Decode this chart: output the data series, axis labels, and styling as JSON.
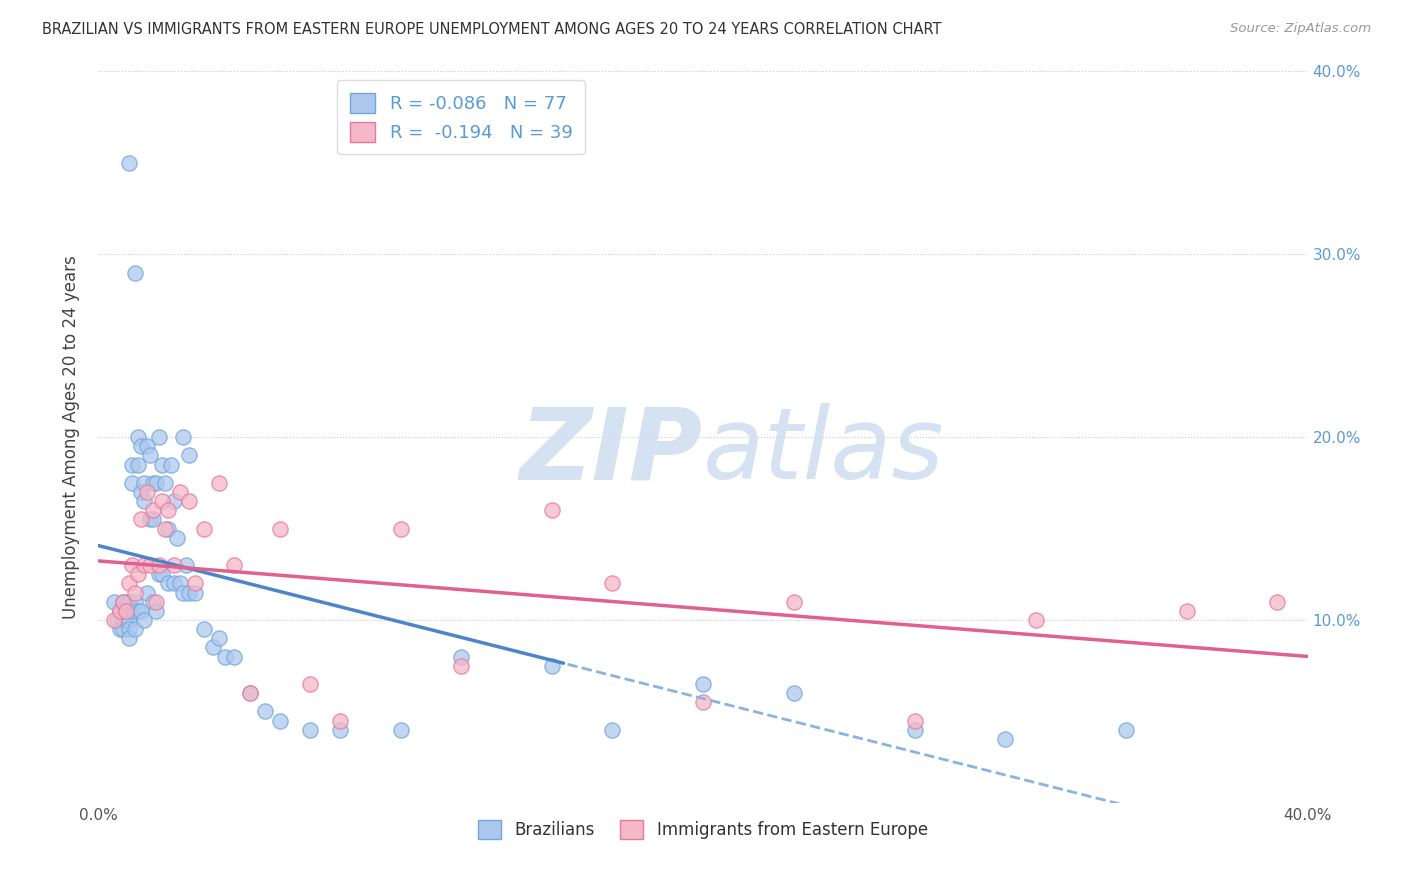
{
  "title": "BRAZILIAN VS IMMIGRANTS FROM EASTERN EUROPE UNEMPLOYMENT AMONG AGES 20 TO 24 YEARS CORRELATION CHART",
  "source_text": "Source: ZipAtlas.com",
  "ylabel": "Unemployment Among Ages 20 to 24 years",
  "xlim": [
    0.0,
    0.4
  ],
  "ylim": [
    0.0,
    0.4
  ],
  "x_ticks": [
    0.0,
    0.1,
    0.2,
    0.3,
    0.4
  ],
  "x_tick_labels": [
    "0.0%",
    "",
    "",
    "",
    "40.0%"
  ],
  "y_ticks": [
    0.1,
    0.2,
    0.3,
    0.4
  ],
  "y_tick_labels_right": [
    "10.0%",
    "20.0%",
    "30.0%",
    "40.0%"
  ],
  "blue_R": -0.086,
  "blue_N": 77,
  "pink_R": -0.194,
  "pink_N": 39,
  "blue_color": "#aec8ed",
  "pink_color": "#f5b8c8",
  "blue_edge_color": "#6fa8dc",
  "pink_edge_color": "#e8789a",
  "blue_line_color": "#4a86c8",
  "pink_line_color": "#e06090",
  "blue_dash_color": "#8ab4e0",
  "watermark_color": "#d0dff0",
  "background_color": "#ffffff",
  "grid_color": "#c8c8c8",
  "title_color": "#333333",
  "label_color": "#5b9bd5",
  "blue_x": [
    0.005,
    0.006,
    0.007,
    0.007,
    0.008,
    0.008,
    0.008,
    0.009,
    0.009,
    0.009,
    0.01,
    0.01,
    0.01,
    0.01,
    0.01,
    0.01,
    0.011,
    0.011,
    0.011,
    0.012,
    0.012,
    0.012,
    0.013,
    0.013,
    0.013,
    0.014,
    0.014,
    0.014,
    0.015,
    0.015,
    0.015,
    0.016,
    0.016,
    0.017,
    0.017,
    0.018,
    0.018,
    0.018,
    0.019,
    0.019,
    0.02,
    0.02,
    0.021,
    0.021,
    0.022,
    0.023,
    0.023,
    0.024,
    0.025,
    0.025,
    0.026,
    0.027,
    0.028,
    0.028,
    0.029,
    0.03,
    0.03,
    0.032,
    0.035,
    0.038,
    0.04,
    0.042,
    0.045,
    0.05,
    0.055,
    0.06,
    0.07,
    0.08,
    0.1,
    0.12,
    0.15,
    0.17,
    0.2,
    0.23,
    0.27,
    0.3,
    0.34
  ],
  "blue_y": [
    0.11,
    0.1,
    0.105,
    0.095,
    0.11,
    0.1,
    0.095,
    0.11,
    0.1,
    0.105,
    0.35,
    0.11,
    0.105,
    0.1,
    0.095,
    0.09,
    0.185,
    0.175,
    0.105,
    0.29,
    0.11,
    0.095,
    0.2,
    0.185,
    0.105,
    0.195,
    0.17,
    0.105,
    0.175,
    0.165,
    0.1,
    0.195,
    0.115,
    0.19,
    0.155,
    0.175,
    0.155,
    0.11,
    0.175,
    0.105,
    0.2,
    0.125,
    0.185,
    0.125,
    0.175,
    0.15,
    0.12,
    0.185,
    0.165,
    0.12,
    0.145,
    0.12,
    0.2,
    0.115,
    0.13,
    0.19,
    0.115,
    0.115,
    0.095,
    0.085,
    0.09,
    0.08,
    0.08,
    0.06,
    0.05,
    0.045,
    0.04,
    0.04,
    0.04,
    0.08,
    0.075,
    0.04,
    0.065,
    0.06,
    0.04,
    0.035,
    0.04
  ],
  "pink_x": [
    0.005,
    0.007,
    0.008,
    0.009,
    0.01,
    0.011,
    0.012,
    0.013,
    0.014,
    0.015,
    0.016,
    0.017,
    0.018,
    0.019,
    0.02,
    0.021,
    0.022,
    0.023,
    0.025,
    0.027,
    0.03,
    0.032,
    0.035,
    0.04,
    0.045,
    0.05,
    0.06,
    0.07,
    0.08,
    0.1,
    0.12,
    0.15,
    0.17,
    0.2,
    0.23,
    0.27,
    0.31,
    0.36,
    0.39
  ],
  "pink_y": [
    0.1,
    0.105,
    0.11,
    0.105,
    0.12,
    0.13,
    0.115,
    0.125,
    0.155,
    0.13,
    0.17,
    0.13,
    0.16,
    0.11,
    0.13,
    0.165,
    0.15,
    0.16,
    0.13,
    0.17,
    0.165,
    0.12,
    0.15,
    0.175,
    0.13,
    0.06,
    0.15,
    0.065,
    0.045,
    0.15,
    0.075,
    0.16,
    0.12,
    0.055,
    0.11,
    0.045,
    0.1,
    0.105,
    0.11
  ],
  "label_blue": "Brazilians",
  "label_pink": "Immigrants from Eastern Europe"
}
